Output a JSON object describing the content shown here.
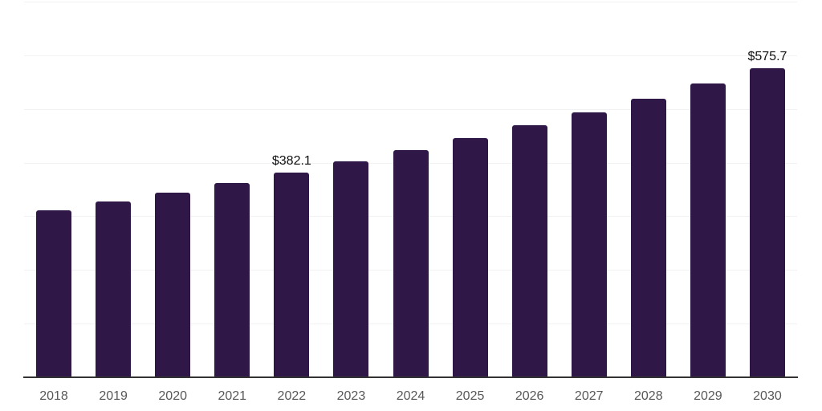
{
  "chart_data": {
    "type": "bar",
    "title": "",
    "xlabel": "",
    "ylabel": "",
    "categories": [
      "2018",
      "2019",
      "2020",
      "2021",
      "2022",
      "2023",
      "2024",
      "2025",
      "2026",
      "2027",
      "2028",
      "2029",
      "2030"
    ],
    "values": [
      311.6,
      327.9,
      344.5,
      362.4,
      382.1,
      402.2,
      423.4,
      445.6,
      469.0,
      493.7,
      519.6,
      547.0,
      575.7
    ],
    "labeled_points": [
      {
        "category": "2022",
        "label": "$382.1"
      },
      {
        "category": "2030",
        "label": "$575.7"
      }
    ],
    "ylim": [
      0,
      700
    ],
    "gridlines": {
      "visible": true,
      "interval": 100,
      "orientation": "horizontal"
    },
    "legend": "none",
    "colors": {
      "bar": "#2f1747",
      "gridline": "#f2f2f2",
      "axis_line": "#333333",
      "tick_label": "#58585b",
      "value_label": "#111111",
      "background": "#ffffff"
    }
  }
}
